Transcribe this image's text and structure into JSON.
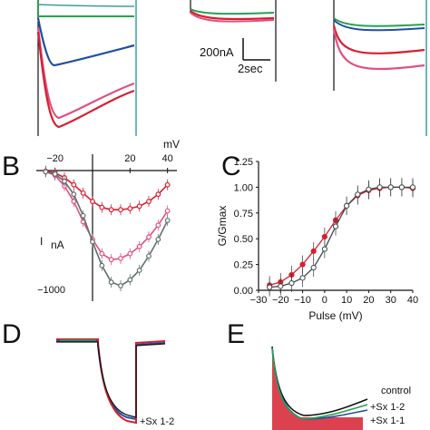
{
  "panels": {
    "b": "B",
    "c": "C",
    "d": "D",
    "e": "E"
  },
  "scale_bar": {
    "current": "200nA",
    "time": "2sec"
  },
  "chart_data": [
    {
      "panel": "B",
      "type": "line",
      "xlabel": "mV",
      "ylabel_main": "I",
      "ylabel_sub": "nA",
      "xlim": [
        -30,
        45
      ],
      "ylim": [
        -1100,
        0
      ],
      "xticks": [
        -20,
        20,
        40
      ],
      "ytick_labels": [
        {
          "value": -1000,
          "text": "−1000"
        }
      ],
      "colors": {
        "red": "#d62030",
        "pink": "#e05080",
        "gray": "#607070"
      },
      "series": [
        {
          "color_key": "red",
          "x": [
            -25,
            -20,
            -15,
            -10,
            -5,
            0,
            5,
            10,
            15,
            20,
            25,
            30,
            35,
            40
          ],
          "y": [
            -5,
            -20,
            -60,
            -120,
            -190,
            -260,
            -310,
            -330,
            -330,
            -320,
            -300,
            -260,
            -200,
            -120
          ]
        },
        {
          "color_key": "pink",
          "x": [
            -25,
            -20,
            -15,
            -10,
            -5,
            0,
            5,
            10,
            15,
            20,
            25,
            30,
            35,
            40
          ],
          "y": [
            -10,
            -40,
            -130,
            -260,
            -430,
            -580,
            -700,
            -750,
            -740,
            -700,
            -640,
            -560,
            -460,
            -340
          ]
        },
        {
          "color_key": "gray",
          "x": [
            -25,
            -20,
            -15,
            -10,
            -5,
            0,
            5,
            10,
            15,
            20,
            25,
            30,
            35,
            40
          ],
          "y": [
            -10,
            -30,
            -90,
            -200,
            -380,
            -600,
            -800,
            -940,
            -970,
            -920,
            -840,
            -720,
            -580,
            -420
          ]
        }
      ]
    },
    {
      "panel": "C",
      "type": "line",
      "xlabel": "Pulse (mV)",
      "ylabel": "G/Gmax",
      "xlim": [
        -30,
        40
      ],
      "ylim": [
        0,
        1.25
      ],
      "xticks": [
        -30,
        -20,
        -10,
        0,
        10,
        20,
        30,
        40
      ],
      "yticks": [
        0.0,
        0.25,
        0.5,
        0.75,
        1.0,
        1.25
      ],
      "xtick_labels": [
        "−30",
        "−20",
        "−10",
        "0",
        "10",
        "20",
        "30",
        "40"
      ],
      "ytick_labels": [
        "0.00",
        "0.25",
        "0.50",
        "0.75",
        "1.00",
        "1.25"
      ],
      "colors": {
        "red": "#d62030",
        "gray": "#3a4a4a"
      },
      "series": [
        {
          "color_key": "red",
          "x": [
            -25,
            -20,
            -15,
            -10,
            -5,
            0,
            5,
            10,
            15,
            20,
            25,
            30,
            35,
            40
          ],
          "y": [
            0.05,
            0.08,
            0.15,
            0.25,
            0.38,
            0.52,
            0.68,
            0.82,
            0.92,
            0.97,
            0.99,
            1.0,
            1.0,
            0.99
          ]
        },
        {
          "color_key": "gray",
          "x": [
            -25,
            -20,
            -15,
            -10,
            -5,
            0,
            5,
            10,
            15,
            20,
            25,
            30,
            35,
            40
          ],
          "y": [
            0.03,
            0.04,
            0.07,
            0.12,
            0.22,
            0.4,
            0.62,
            0.82,
            0.93,
            0.98,
            1.0,
            1.0,
            1.0,
            1.0
          ]
        }
      ]
    }
  ],
  "legend_d": [
    "+Sx 1-2"
  ],
  "legend_e": [
    "control",
    "+Sx 1-2",
    "+Sx 1-1"
  ],
  "colors": {
    "green": "#2aa050",
    "blue": "#2050a0",
    "red": "#d62030",
    "pink": "#e05080",
    "teal": "#3aa0a0",
    "black": "#111111"
  }
}
